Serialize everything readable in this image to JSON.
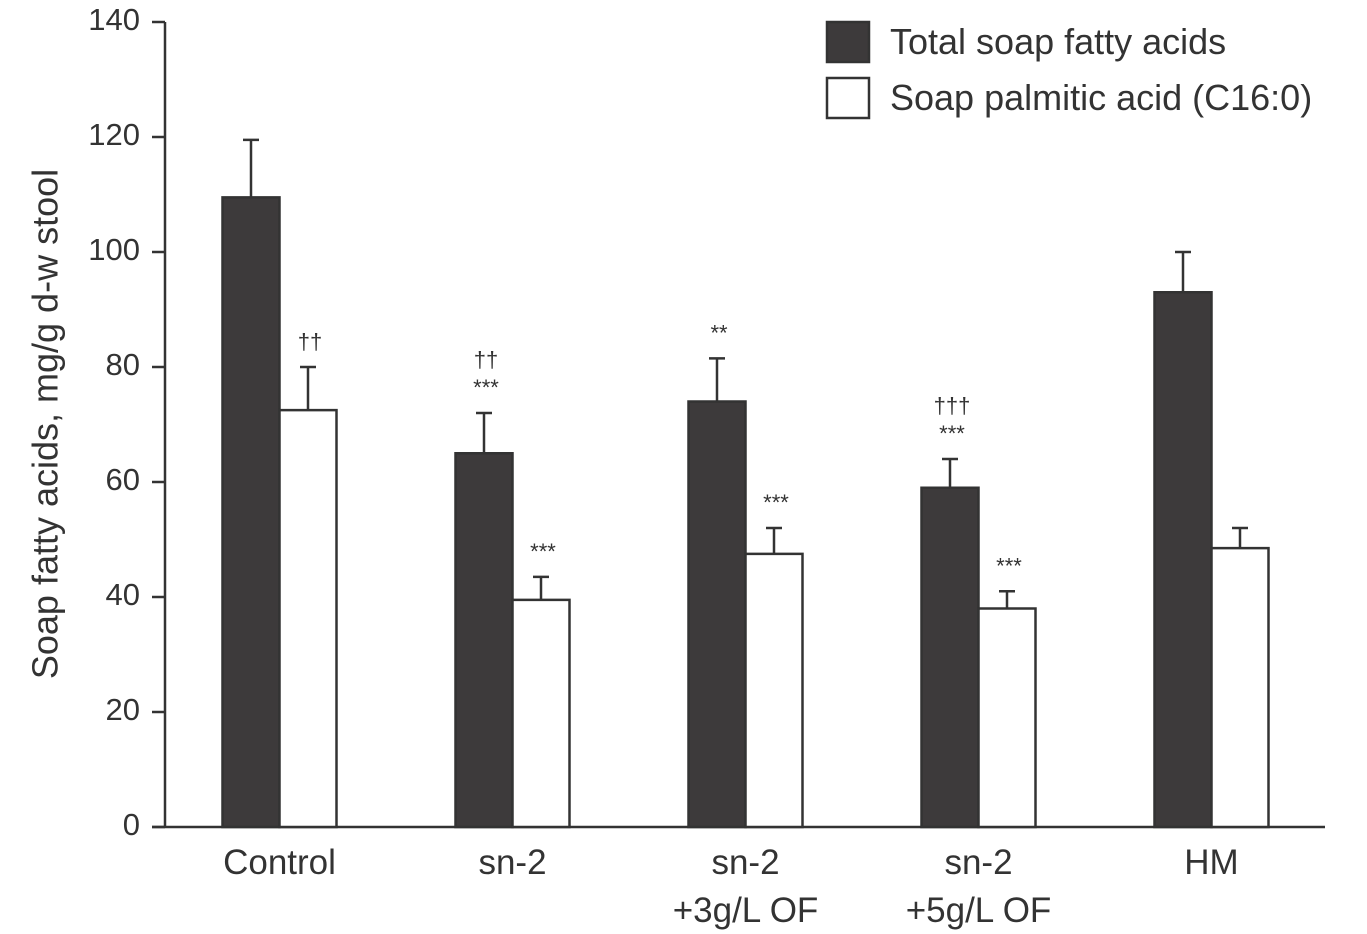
{
  "chart_data": {
    "type": "bar",
    "y_label": "Soap fatty acids, mg/g d-w stool",
    "categories": [
      "Control",
      "sn-2",
      "sn-2 +3g/L OF",
      "sn-2 +5g/L OF",
      "HM"
    ],
    "series": [
      {
        "name": "Total soap fatty acids",
        "color": "#3d3a3b",
        "values": [
          109.5,
          65,
          74,
          59,
          93
        ],
        "errors": [
          10,
          7,
          7.5,
          5,
          7
        ],
        "annotations": [
          [],
          [
            "††",
            "***"
          ],
          [
            "**"
          ],
          [
            "†††",
            "***"
          ],
          []
        ]
      },
      {
        "name": "Soap palmitic acid (C16:0)",
        "color": "#ffffff",
        "values": [
          72.5,
          39.5,
          47.5,
          38,
          48.5
        ],
        "errors": [
          7.5,
          4,
          4.5,
          3,
          3.5
        ],
        "annotations": [
          [
            "††"
          ],
          [
            "***"
          ],
          [
            "***"
          ],
          [
            "***"
          ],
          []
        ]
      }
    ],
    "ylim": [
      0,
      140
    ],
    "yticks": [
      0,
      20,
      40,
      60,
      80,
      100,
      120,
      140
    ],
    "legend": "top-right"
  }
}
